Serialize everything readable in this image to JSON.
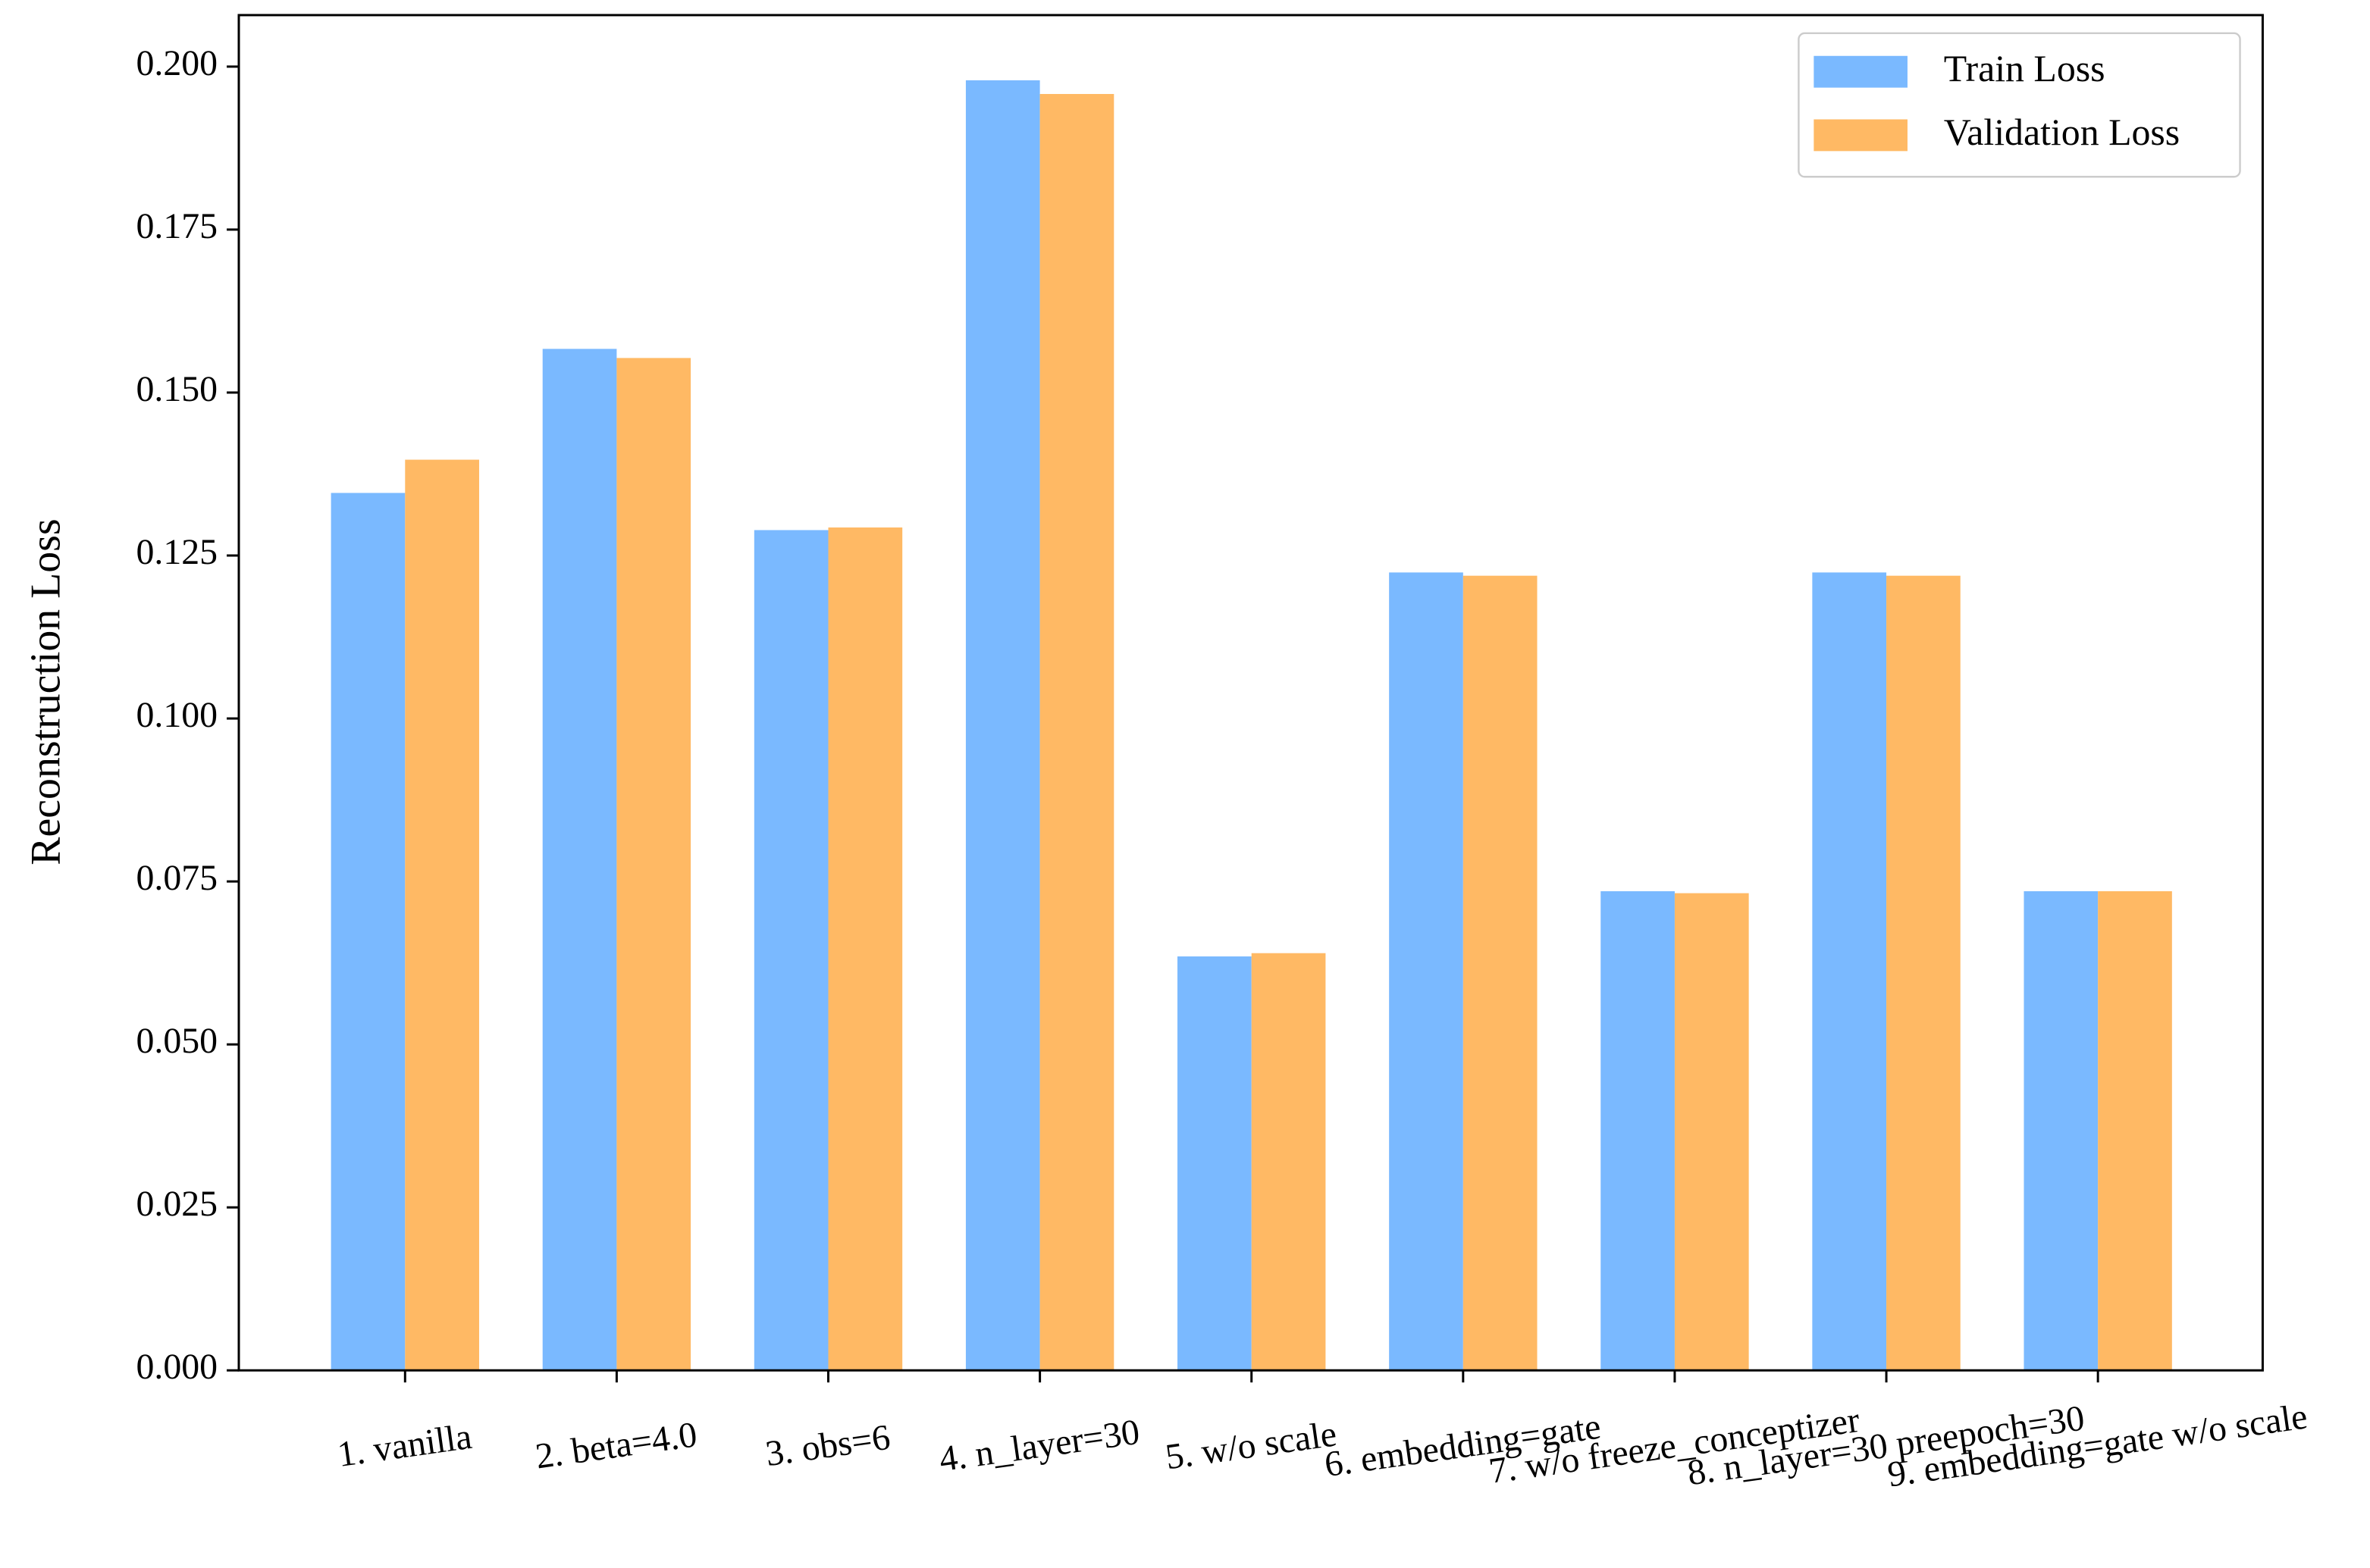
{
  "chart_data": {
    "type": "bar",
    "y_label": "Reconstruction Loss",
    "categories": [
      "1. vanilla",
      "2. beta=4.0",
      "3. obs=6",
      "4. n_layer=30",
      "5. w/o scale",
      "6. embedding=gate",
      "7. w/o freeze_conceptizer",
      "8. n_layer=30 preepoch=30",
      "9. embedding=gate w/o scale"
    ],
    "series": [
      {
        "name": "Train Loss",
        "color": "#7ab9ff",
        "values": [
          0.1346,
          0.1567,
          0.1289,
          0.1979,
          0.0635,
          0.1224,
          0.0735,
          0.1224,
          0.0735
        ]
      },
      {
        "name": "Validation Loss",
        "color": "#ffb964",
        "values": [
          0.1397,
          0.1553,
          0.1293,
          0.1958,
          0.064,
          0.1219,
          0.0732,
          0.1219,
          0.0735
        ]
      }
    ],
    "ylim": [
      0,
      0.2079
    ],
    "yticks": [
      {
        "value": 0,
        "label": "0.000"
      },
      {
        "value": 0.025,
        "label": "0.025"
      },
      {
        "value": 0.05,
        "label": "0.050"
      },
      {
        "value": 0.075,
        "label": "0.075"
      },
      {
        "value": 0.1,
        "label": "0.100"
      },
      {
        "value": 0.125,
        "label": "0.125"
      },
      {
        "value": 0.15,
        "label": "0.150"
      },
      {
        "value": 0.175,
        "label": "0.175"
      },
      {
        "value": 0.2,
        "label": "0.200"
      }
    ],
    "legend": "upper right"
  }
}
